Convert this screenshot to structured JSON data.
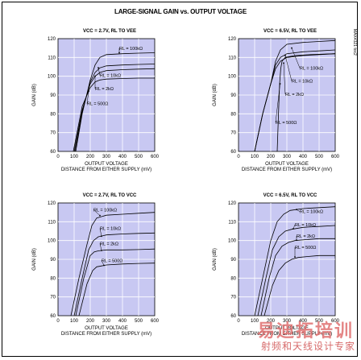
{
  "page": {
    "title": "LARGE-SIGNAL GAIN vs. OUTPUT VOLTAGE",
    "side_code": "MAX4321 toc2",
    "watermark_top": "易迪拓培训",
    "watermark_bottom": "射频和天线设计专家"
  },
  "chart_data": [
    {
      "type": "line",
      "title": "VCC = 2.7V, RL TO VEE",
      "xlabel": "OUTPUT VOLTAGE",
      "xlabel2": "DISTANCE FROM EITHER SUPPLY (mV)",
      "ylabel": "GAIN (dB)",
      "xlim": [
        0,
        600
      ],
      "ylim": [
        60,
        120
      ],
      "xticks": [
        0,
        100,
        200,
        300,
        400,
        500,
        600
      ],
      "yticks": [
        60,
        70,
        80,
        90,
        100,
        110,
        120
      ],
      "series": [
        {
          "name": "RL = 100kΩ",
          "x": [
            110,
            150,
            200,
            230,
            260,
            300,
            400,
            500,
            600
          ],
          "y": [
            60,
            80,
            98,
            106,
            110,
            111.5,
            112,
            112.3,
            112.5
          ]
        },
        {
          "name": "RL = 10kΩ",
          "x": [
            105,
            150,
            200,
            230,
            260,
            300,
            400,
            500,
            600
          ],
          "y": [
            60,
            81,
            97,
            102,
            104.5,
            105.5,
            106,
            106.3,
            106.5
          ]
        },
        {
          "name": "RL = 2kΩ",
          "x": [
            100,
            150,
            200,
            230,
            260,
            300,
            400,
            500,
            600
          ],
          "y": [
            60,
            82,
            96,
            100,
            102,
            103,
            103.5,
            103.8,
            104
          ]
        },
        {
          "name": "RL = 500Ω",
          "x": [
            95,
            150,
            200,
            230,
            260,
            300,
            400,
            500,
            600
          ],
          "y": [
            60,
            84,
            94,
            97,
            98,
            98.5,
            98.8,
            99,
            99
          ]
        }
      ],
      "labels": [
        "RL = 100kΩ",
        "RL = 10kΩ",
        "RL = 2kΩ",
        "RL = 500Ω"
      ],
      "label_pos": [
        [
          420,
          114.5
        ],
        [
          300,
          100
        ],
        [
          270,
          93
        ],
        [
          220,
          85
        ]
      ],
      "arrow_to": [
        [
          380,
          112.5
        ],
        [
          250,
          104.5
        ],
        [
          230,
          100
        ],
        [
          190,
          92
        ]
      ]
    },
    {
      "type": "line",
      "title": "VCC = 6.5V, RL TO VEE",
      "xlabel": "OUTPUT VOLTAGE",
      "xlabel2": "DISTANCE FROM EITHER SUPPLY (mV)",
      "ylabel": "GAIN (dB)",
      "xlim": [
        0,
        600
      ],
      "ylim": [
        60,
        120
      ],
      "xticks": [
        0,
        100,
        200,
        300,
        400,
        500,
        600
      ],
      "yticks": [
        60,
        70,
        80,
        90,
        100,
        110,
        120
      ],
      "series": [
        {
          "name": "RL = 100kΩ",
          "x": [
            100,
            150,
            200,
            230,
            260,
            300,
            400,
            500,
            600
          ],
          "y": [
            60,
            80,
            96,
            108,
            114,
            117,
            118,
            118.5,
            119
          ]
        },
        {
          "name": "RL = 10kΩ",
          "x": [
            100,
            150,
            200,
            230,
            260,
            300,
            400,
            500,
            600
          ],
          "y": [
            60,
            80,
            96,
            106,
            110,
            112,
            113,
            113.5,
            114
          ]
        },
        {
          "name": "RL = 2kΩ",
          "x": [
            100,
            150,
            200,
            230,
            260,
            300,
            400,
            500,
            600
          ],
          "y": [
            60,
            80,
            96,
            104,
            108,
            110,
            111,
            111.5,
            112
          ]
        },
        {
          "name": "RL = 500Ω",
          "x": [
            240,
            248,
            255,
            262,
            270,
            290,
            350,
            450,
            600
          ],
          "y": [
            60,
            80,
            96,
            104,
            108,
            110,
            111,
            111.5,
            112
          ]
        }
      ],
      "labels": [
        "RL = 100kΩ",
        "RL = 10kΩ",
        "RL = 2kΩ",
        "RL = 500Ω"
      ],
      "label_pos": [
        [
          420,
          104
        ],
        [
          370,
          97
        ],
        [
          330,
          90
        ],
        [
          270,
          75
        ]
      ],
      "arrow_to": [
        [
          330,
          115
        ],
        [
          290,
          111
        ],
        [
          280,
          107
        ],
        [
          258,
          96
        ]
      ]
    },
    {
      "type": "line",
      "title": "VCC = 2.7V, RL TO VCC",
      "xlabel": "OUTPUT VOLTAGE",
      "xlabel2": "DISTANCE FROM EITHER SUPPLY (mV)",
      "ylabel": "GAIN (dB)",
      "xlim": [
        0,
        600
      ],
      "ylim": [
        60,
        120
      ],
      "xticks": [
        0,
        100,
        200,
        300,
        400,
        500,
        600
      ],
      "yticks": [
        60,
        70,
        80,
        90,
        100,
        110,
        120
      ],
      "series": [
        {
          "name": "RL = 100kΩ",
          "x": [
            80,
            130,
            180,
            210,
            240,
            300,
            400,
            500,
            600
          ],
          "y": [
            60,
            80,
            98,
            108,
            112,
            113.5,
            114,
            114.5,
            115
          ]
        },
        {
          "name": "RL = 10kΩ",
          "x": [
            100,
            150,
            190,
            220,
            250,
            300,
            400,
            500,
            600
          ],
          "y": [
            60,
            80,
            95,
            100,
            102,
            103,
            103.5,
            103.8,
            104
          ]
        },
        {
          "name": "RL = 2kΩ",
          "x": [
            110,
            160,
            200,
            225,
            250,
            300,
            400,
            500,
            600
          ],
          "y": [
            60,
            80,
            92,
            94,
            94.5,
            95,
            95,
            95.2,
            95.5
          ]
        },
        {
          "name": "RL = 500Ω",
          "x": [
            130,
            180,
            215,
            240,
            270,
            300,
            400,
            500,
            600
          ],
          "y": [
            60,
            77,
            84,
            86,
            86.5,
            87,
            87.5,
            87.8,
            88
          ]
        }
      ],
      "labels": [
        "RL = 100kΩ",
        "RL = 10kΩ",
        "RL = 2kΩ",
        "RL = 500Ω"
      ],
      "label_pos": [
        [
          260,
          116
        ],
        [
          300,
          106
        ],
        [
          300,
          98
        ],
        [
          310,
          89
        ]
      ],
      "arrow_to": [
        [
          260,
          113.3
        ],
        [
          270,
          102.3
        ],
        [
          270,
          94.7
        ],
        [
          285,
          86.8
        ]
      ]
    },
    {
      "type": "line",
      "title": "VCC = 6.5V, RL TO VCC",
      "xlabel": "OUTPUT VOLTAGE",
      "xlabel2": "DISTANCE FROM EITHER SUPPLY (mV)",
      "ylabel": "GAIN (dB)",
      "xlim": [
        0,
        600
      ],
      "ylim": [
        60,
        120
      ],
      "xticks": [
        0,
        100,
        200,
        300,
        400,
        500,
        600
      ],
      "yticks": [
        60,
        70,
        80,
        90,
        100,
        110,
        120
      ],
      "series": [
        {
          "name": "RL = 100kΩ",
          "x": [
            100,
            150,
            200,
            240,
            280,
            320,
            400,
            500,
            600
          ],
          "y": [
            60,
            80,
            100,
            110,
            114,
            116,
            117,
            117.5,
            118
          ]
        },
        {
          "name": "RL = 10kΩ",
          "x": [
            120,
            170,
            210,
            250,
            290,
            330,
            400,
            500,
            600
          ],
          "y": [
            60,
            80,
            95,
            102,
            105,
            106,
            107,
            107.5,
            108
          ]
        },
        {
          "name": "RL = 2kΩ",
          "x": [
            140,
            190,
            230,
            270,
            310,
            350,
            420,
            500,
            600
          ],
          "y": [
            60,
            80,
            92,
            97,
            99,
            100,
            100.5,
            101,
            101
          ]
        },
        {
          "name": "RL = 500Ω",
          "x": [
            160,
            210,
            250,
            290,
            330,
            370,
            430,
            500,
            600
          ],
          "y": [
            60,
            76,
            84,
            88,
            90,
            91,
            91.5,
            92,
            92
          ]
        }
      ],
      "labels": [
        "RL = 100kΩ",
        "RL = 10kΩ",
        "RL = 2kΩ",
        "RL = 500Ω"
      ],
      "label_pos": [
        [
          420,
          115
        ],
        [
          390,
          108
        ],
        [
          400,
          102
        ],
        [
          390,
          96
        ]
      ],
      "arrow_to": [
        [
          360,
          116.5
        ],
        [
          340,
          106.3
        ],
        [
          360,
          100.2
        ],
        [
          350,
          91.3
        ]
      ]
    }
  ]
}
